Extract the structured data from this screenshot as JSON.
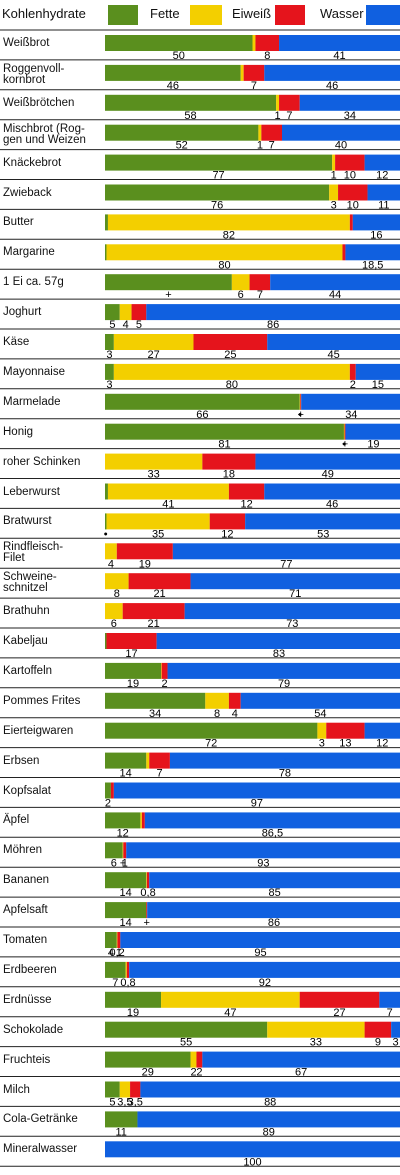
{
  "chart_data": {
    "type": "stacked-bar-horizontal",
    "xlim": [
      0,
      100
    ],
    "categories": [
      "Weißbrot",
      "Roggenvoll-\nkornbrot",
      "Weißbrötchen",
      "Mischbrot (Rog-\ngen und Weizen",
      "Knäckebrot",
      "Zwieback",
      "Butter",
      "Margarine",
      "1 Ei ca. 57g",
      "Joghurt",
      "Käse",
      "Mayonnaise",
      "Marmelade",
      "Honig",
      "roher Schinken",
      "Leberwurst",
      "Bratwurst",
      "Rindfleisch-\nFilet",
      "Schweine-\nschnitzel",
      "Brathuhn",
      "Kabeljau",
      "Kartoffeln",
      "Pommes Frites",
      "Eierteigwaren",
      "Erbsen",
      "Kopfsalat",
      "Äpfel",
      "Möhren",
      "Bananen",
      "Apfelsaft",
      "Tomaten",
      "Erdbeeren",
      "Erdnüsse",
      "Schokolade",
      "Fruchteis",
      "Milch",
      "Cola-Getränke",
      "Mineralwasser"
    ],
    "series": [
      {
        "name": "Kohlenhydrate",
        "color": "#5a8f1e",
        "values": [
          50,
          46,
          58,
          52,
          77,
          76,
          1,
          0.5,
          43,
          5,
          3,
          3,
          66,
          81,
          0,
          1,
          0.5,
          0,
          0,
          0,
          0.5,
          19,
          34,
          72,
          14,
          2,
          12,
          6,
          14,
          14,
          4,
          7,
          19,
          55,
          29,
          5,
          11,
          0
        ],
        "value_labels": [
          "50",
          "46",
          "58",
          "52",
          "77",
          "76",
          null,
          null,
          "+",
          "5",
          "3",
          "3",
          "66",
          "81",
          null,
          null,
          "•",
          null,
          null,
          null,
          null,
          "19",
          "34",
          "72",
          "14",
          "2",
          "12",
          "6",
          "14",
          "14",
          "4",
          "7",
          "19",
          "55",
          "29",
          "5",
          "11",
          null
        ]
      },
      {
        "name": "Fette",
        "color": "#f3cf00",
        "values": [
          1,
          1,
          1,
          1,
          1,
          3,
          82,
          80,
          6,
          4,
          27,
          80,
          0.2,
          0.2,
          33,
          41,
          35,
          4,
          8,
          6,
          0,
          0.2,
          8,
          3,
          1,
          0,
          0.5,
          0.2,
          0.2,
          0,
          0.2,
          0.4,
          47,
          33,
          2,
          3.5,
          0,
          0
        ],
        "value_labels": [
          null,
          null,
          "1",
          "1",
          "1",
          "3",
          "82",
          "80",
          "6",
          "4",
          "27",
          "80",
          "•",
          "•",
          "33",
          "41",
          "35",
          "4",
          "8",
          "6",
          null,
          null,
          "8",
          "3",
          null,
          null,
          null,
          "+",
          null,
          null,
          "0,2",
          null,
          "47",
          "33",
          "2",
          "3,5",
          null,
          null
        ]
      },
      {
        "name": "Eiweiß",
        "color": "#e5141c",
        "values": [
          8,
          7,
          7,
          7,
          10,
          10,
          1,
          1,
          7,
          5,
          25,
          2,
          0.3,
          0.3,
          18,
          12,
          12,
          19,
          21,
          21,
          17,
          2,
          4,
          13,
          7,
          1,
          1,
          1,
          0.8,
          0.3,
          1,
          0.8,
          27,
          9,
          2,
          3.5,
          0,
          0
        ],
        "value_labels": [
          "8",
          "7",
          "7",
          "7",
          "10",
          "10",
          null,
          null,
          "7",
          "5",
          "25",
          "2",
          "+",
          "+",
          "18",
          "12",
          "12",
          "19",
          "21",
          "21",
          "17",
          "2",
          "4",
          "13",
          "7",
          null,
          null,
          "1",
          "0,8",
          "+",
          "1",
          "0,8",
          "27",
          "9",
          "2",
          "3,5",
          null,
          null
        ]
      },
      {
        "name": "Wasser",
        "color": "#1060e0",
        "values": [
          41,
          46,
          34,
          40,
          12,
          11,
          16,
          18.5,
          44,
          86,
          45,
          15,
          34,
          19,
          49,
          46,
          53,
          77,
          71,
          73,
          83,
          79,
          54,
          12,
          78,
          97,
          86.5,
          93,
          85,
          86,
          95,
          92,
          7,
          3,
          67,
          88,
          89,
          100
        ],
        "value_labels": [
          "41",
          "46",
          "34",
          "40",
          "12",
          "11",
          "16",
          "18,5",
          "44",
          "86",
          "45",
          "15",
          "34",
          "19",
          "49",
          "46",
          "53",
          "77",
          "71",
          "73",
          "83",
          "79",
          "54",
          "12",
          "78",
          "97",
          "86,5",
          "93",
          "85",
          "86",
          "95",
          "92",
          "7",
          "3",
          "67",
          "88",
          "89",
          "100"
        ]
      }
    ]
  }
}
